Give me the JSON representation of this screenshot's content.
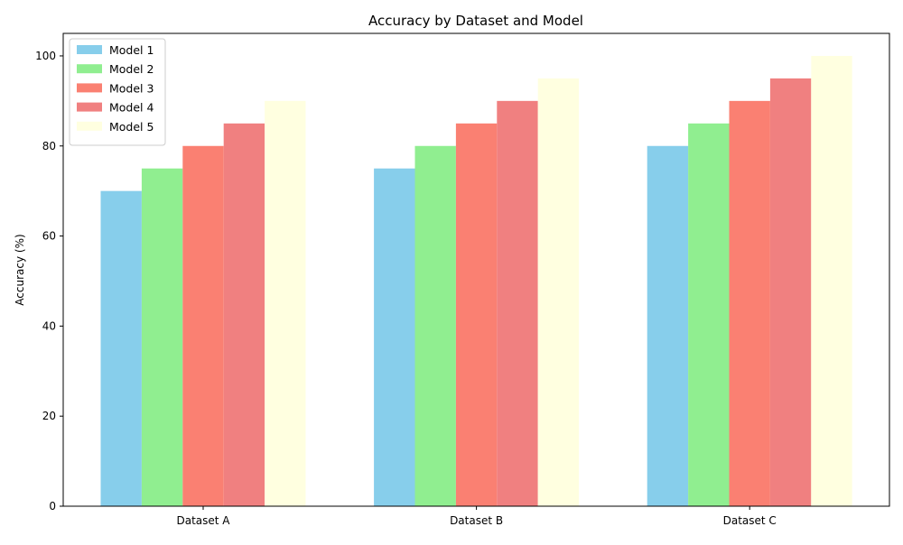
{
  "chart_data": {
    "type": "bar",
    "title": "Accuracy by Dataset and Model",
    "xlabel": "",
    "ylabel": "Accuracy (%)",
    "categories": [
      "Dataset A",
      "Dataset B",
      "Dataset C"
    ],
    "ylim": [
      0,
      105
    ],
    "yticks": [
      0,
      20,
      40,
      60,
      80,
      100
    ],
    "grid": false,
    "legend_position": "top-left",
    "series": [
      {
        "name": "Model 1",
        "color": "#87CEEB",
        "values": [
          70,
          75,
          80
        ]
      },
      {
        "name": "Model 2",
        "color": "#90EE90",
        "values": [
          75,
          80,
          85
        ]
      },
      {
        "name": "Model 3",
        "color": "#FA8072",
        "values": [
          80,
          85,
          90
        ]
      },
      {
        "name": "Model 4",
        "color": "#F08080",
        "values": [
          85,
          90,
          95
        ]
      },
      {
        "name": "Model 5",
        "color": "#FFFFE0",
        "values": [
          90,
          95,
          100
        ]
      }
    ]
  }
}
